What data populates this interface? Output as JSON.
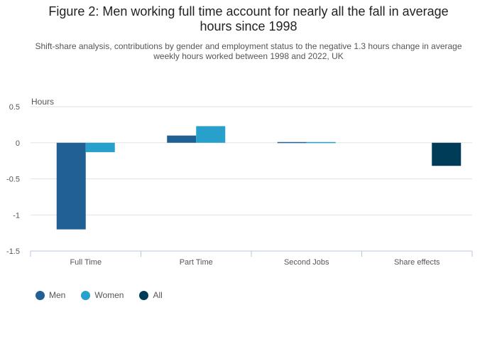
{
  "chart_data": {
    "type": "bar",
    "title_lines": [
      "Figure 2: Men working full time account for nearly all the fall in average",
      "hours since 1998"
    ],
    "subtitle_lines": [
      "Shift-share analysis, contributions by gender and employment status to the negative 1.3 hours change in average",
      "weekly hours worked between 1998 and 2022, UK"
    ],
    "ylabel": "Hours",
    "xlabel": "",
    "ylim": [
      -1.5,
      0.5
    ],
    "yticks": [
      "0.5",
      "0",
      "-0.5",
      "-1",
      "-1.5"
    ],
    "ytick_values": [
      0.5,
      0,
      -0.5,
      -1,
      -1.5
    ],
    "categories": [
      "Full Time",
      "Part Time",
      "Second Jobs",
      "Share effects"
    ],
    "series": [
      {
        "name": "Men",
        "color": "#206095",
        "values": [
          -1.2,
          0.1,
          0.01,
          null
        ]
      },
      {
        "name": "Women",
        "color": "#27a0cc",
        "values": [
          -0.13,
          0.23,
          0.01,
          null
        ]
      },
      {
        "name": "All",
        "color": "#003c57",
        "values": [
          null,
          null,
          null,
          -0.32
        ]
      }
    ],
    "grid": true,
    "legend_position": "bottom-left"
  }
}
